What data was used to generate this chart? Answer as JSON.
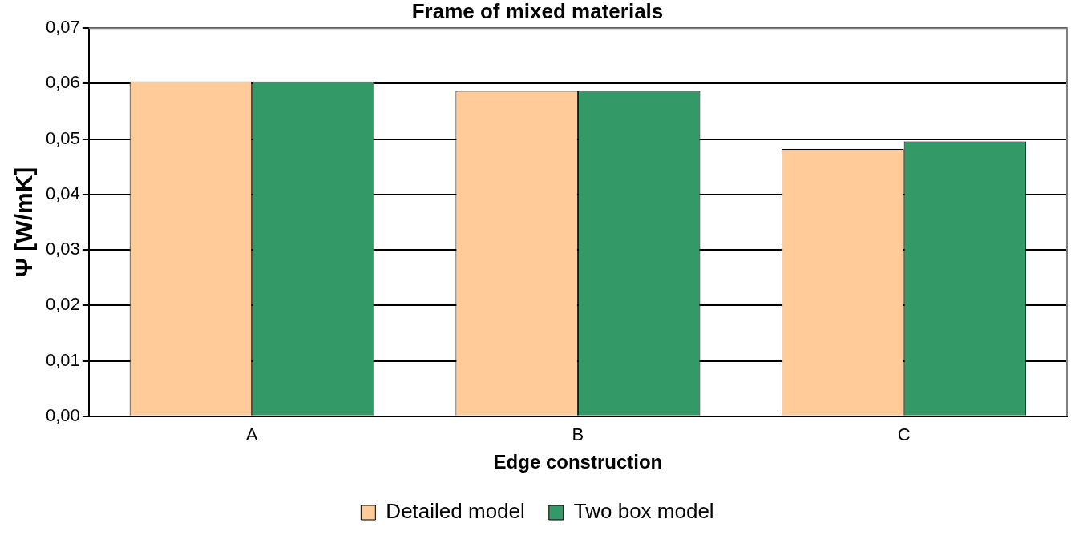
{
  "chart_data": {
    "type": "bar",
    "title": "Frame of mixed materials",
    "xlabel": "Edge construction",
    "ylabel": "Ψ [W/mK]",
    "categories": [
      "A",
      "B",
      "C"
    ],
    "series": [
      {
        "name": "Detailed model",
        "color": "#ffcc99",
        "values": [
          0.0604,
          0.0587,
          0.0482
        ]
      },
      {
        "name": "Two box model",
        "color": "#339966",
        "values": [
          0.0604,
          0.0587,
          0.0496
        ]
      }
    ],
    "ylim": [
      0,
      0.07
    ],
    "yticks": [
      {
        "value": 0,
        "label": "0,00"
      },
      {
        "value": 0.01,
        "label": "0,01"
      },
      {
        "value": 0.02,
        "label": "0,02"
      },
      {
        "value": 0.03,
        "label": "0,03"
      },
      {
        "value": 0.04,
        "label": "0,04"
      },
      {
        "value": 0.05,
        "label": "0,05"
      },
      {
        "value": 0.06,
        "label": "0,06"
      },
      {
        "value": 0.07,
        "label": "0,07"
      }
    ],
    "grid": "y",
    "legend": "bottom"
  }
}
